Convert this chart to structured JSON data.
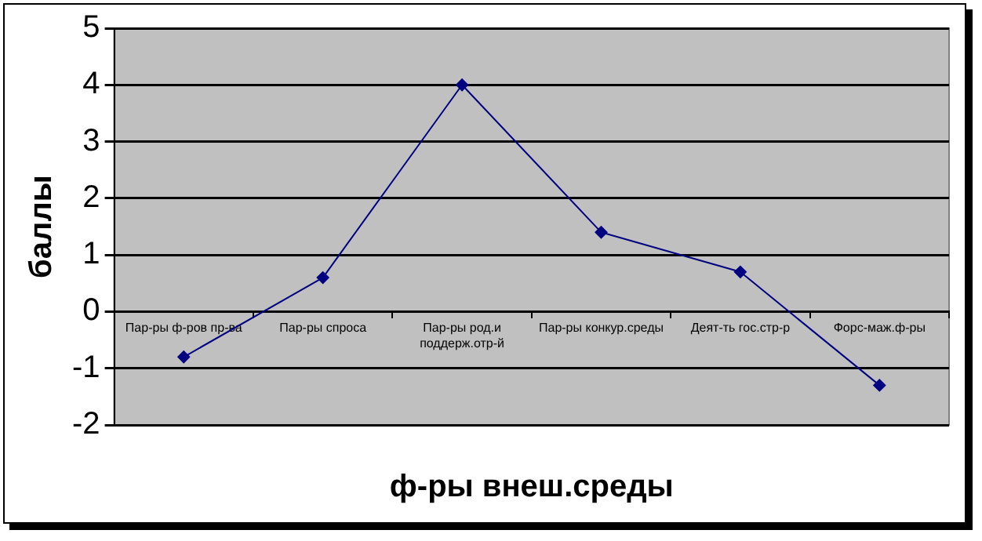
{
  "chart_data": {
    "type": "line",
    "xlabel": "ф-ры внеш.среды",
    "ylabel": "баллы",
    "categories": [
      "Пар-ры ф-ров пр-ва",
      "Пар-ры спроса",
      "Пар-ры род.и поддерж.отр-й",
      "Пар-ры конкур.среды",
      "Деят-ть гос.стр-р",
      "Форс-маж.ф-ры"
    ],
    "series": [
      {
        "color": "#000080",
        "values": [
          -0.8,
          0.6,
          4.0,
          1.4,
          0.7,
          -1.3
        ]
      }
    ],
    "ylim": [
      -2,
      5
    ],
    "yticks": [
      -2,
      -1,
      0,
      1,
      2,
      3,
      4,
      5
    ],
    "grid": "y",
    "legend": false,
    "marker": "diamond",
    "line_style": "solid"
  }
}
